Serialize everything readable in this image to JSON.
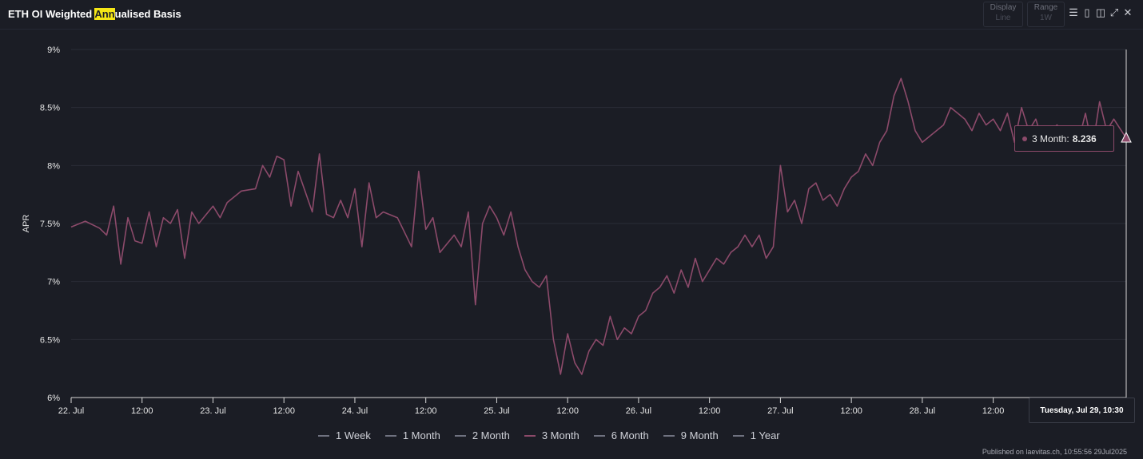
{
  "title_parts": {
    "pre": "ETH OI Weighted ",
    "hl": "Ann",
    "post": "ualised Basis"
  },
  "controls": {
    "display": {
      "label": "Display",
      "value": "Line"
    },
    "range": {
      "label": "Range",
      "value": "1W"
    }
  },
  "icons": [
    "menu-icon",
    "bookmark-icon",
    "book-icon",
    "collapse-icon",
    "close-icon"
  ],
  "tooltip": {
    "series": "3 Month:",
    "value": "8.236"
  },
  "crosshair_label": "Tuesday, Jul 29, 10:30",
  "footer": "Published on laevitas.ch, 10:55:56 29Jul2025",
  "colors": {
    "series": "#8c4a6a",
    "grid": "#2a2d37",
    "background": "#1b1d25",
    "highlight": "#f5e616"
  },
  "chart_data": {
    "type": "line",
    "title": "ETH OI Weighted Annualised Basis",
    "ylabel": "APR",
    "xlabel": "",
    "ylim": [
      6,
      9
    ],
    "yticks": [
      "9%",
      "8.5%",
      "8%",
      "7.5%",
      "7%",
      "6.5%",
      "6%"
    ],
    "ytick_values": [
      9,
      8.5,
      8,
      7.5,
      7,
      6.5,
      6
    ],
    "xlim": [
      0,
      7.4375
    ],
    "xticks": [
      "22. Jul",
      "12:00",
      "23. Jul",
      "12:00",
      "24. Jul",
      "12:00",
      "25. Jul",
      "12:00",
      "26. Jul",
      "12:00",
      "27. Jul",
      "12:00",
      "28. Jul",
      "12:00"
    ],
    "xtick_values": [
      0,
      0.5,
      1,
      1.5,
      2,
      2.5,
      3,
      3.5,
      4,
      4.5,
      5,
      5.5,
      6,
      6.5
    ],
    "legend": [
      "1 Week",
      "1 Month",
      "2 Month",
      "3 Month",
      "6 Month",
      "9 Month",
      "1 Year"
    ],
    "series": [
      {
        "name": "3 Month",
        "x_unit": "days since 22 Jul 00:00",
        "x": [
          0,
          0.1,
          0.2,
          0.25,
          0.3,
          0.35,
          0.4,
          0.45,
          0.5,
          0.55,
          0.6,
          0.65,
          0.7,
          0.75,
          0.8,
          0.85,
          0.9,
          1.0,
          1.05,
          1.1,
          1.2,
          1.3,
          1.35,
          1.4,
          1.45,
          1.5,
          1.55,
          1.6,
          1.7,
          1.75,
          1.8,
          1.85,
          1.9,
          1.95,
          2.0,
          2.05,
          2.1,
          2.15,
          2.2,
          2.3,
          2.4,
          2.45,
          2.5,
          2.55,
          2.6,
          2.7,
          2.75,
          2.8,
          2.85,
          2.9,
          2.95,
          3.0,
          3.05,
          3.1,
          3.15,
          3.2,
          3.25,
          3.3,
          3.35,
          3.4,
          3.45,
          3.5,
          3.55,
          3.6,
          3.65,
          3.7,
          3.75,
          3.8,
          3.85,
          3.9,
          3.95,
          4.0,
          4.05,
          4.1,
          4.15,
          4.2,
          4.25,
          4.3,
          4.35,
          4.4,
          4.45,
          4.5,
          4.55,
          4.6,
          4.65,
          4.7,
          4.75,
          4.8,
          4.85,
          4.9,
          4.95,
          5.0,
          5.05,
          5.1,
          5.15,
          5.2,
          5.25,
          5.3,
          5.35,
          5.4,
          5.45,
          5.5,
          5.55,
          5.6,
          5.65,
          5.7,
          5.75,
          5.8,
          5.85,
          5.9,
          5.95,
          6.0,
          6.05,
          6.1,
          6.15,
          6.2,
          6.25,
          6.3,
          6.35,
          6.4,
          6.45,
          6.5,
          6.55,
          6.6,
          6.65,
          6.7,
          6.75,
          6.8,
          6.85,
          6.9,
          6.95,
          7.0,
          7.05,
          7.1,
          7.15,
          7.2,
          7.25,
          7.3,
          7.35,
          7.4375
        ],
        "y": [
          7.47,
          7.52,
          7.46,
          7.4,
          7.65,
          7.15,
          7.55,
          7.35,
          7.33,
          7.6,
          7.3,
          7.55,
          7.5,
          7.62,
          7.2,
          7.6,
          7.5,
          7.65,
          7.55,
          7.68,
          7.78,
          7.8,
          8.0,
          7.9,
          8.08,
          8.05,
          7.65,
          7.95,
          7.6,
          8.1,
          7.58,
          7.55,
          7.7,
          7.55,
          7.8,
          7.3,
          7.85,
          7.55,
          7.6,
          7.55,
          7.3,
          7.95,
          7.45,
          7.55,
          7.25,
          7.4,
          7.3,
          7.6,
          6.8,
          7.5,
          7.65,
          7.55,
          7.4,
          7.6,
          7.3,
          7.1,
          7.0,
          6.95,
          7.05,
          6.5,
          6.2,
          6.55,
          6.3,
          6.2,
          6.4,
          6.5,
          6.45,
          6.7,
          6.5,
          6.6,
          6.55,
          6.7,
          6.75,
          6.9,
          6.95,
          7.05,
          6.9,
          7.1,
          6.95,
          7.2,
          7.0,
          7.1,
          7.2,
          7.15,
          7.25,
          7.3,
          7.4,
          7.3,
          7.4,
          7.2,
          7.3,
          8.0,
          7.6,
          7.7,
          7.5,
          7.8,
          7.85,
          7.7,
          7.75,
          7.65,
          7.8,
          7.9,
          7.95,
          8.1,
          8.0,
          8.2,
          8.3,
          8.6,
          8.75,
          8.55,
          8.3,
          8.2,
          8.25,
          8.3,
          8.35,
          8.5,
          8.45,
          8.4,
          8.3,
          8.45,
          8.35,
          8.4,
          8.3,
          8.45,
          8.2,
          8.5,
          8.3,
          8.4,
          8.2,
          8.3,
          8.35,
          8.25,
          8.3,
          8.2,
          8.45,
          8.15,
          8.55,
          8.3,
          8.4,
          8.236
        ]
      }
    ]
  }
}
